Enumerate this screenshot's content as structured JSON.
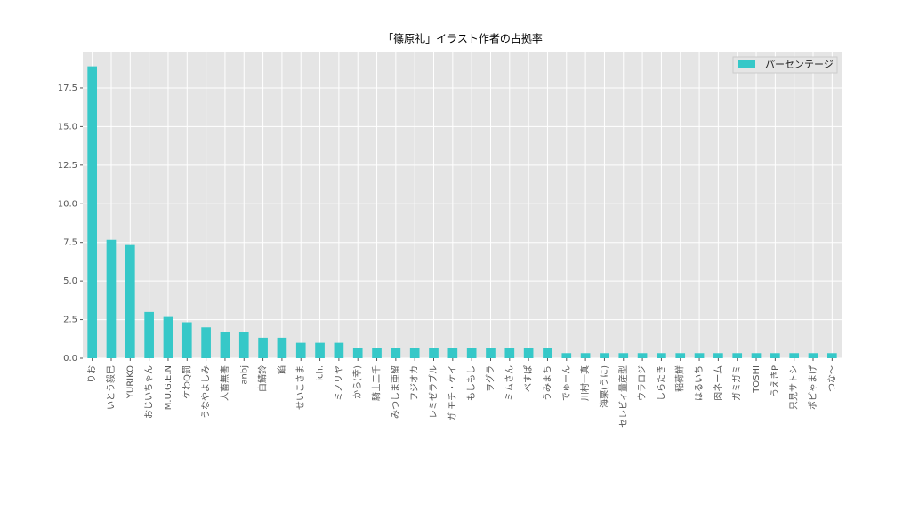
{
  "chart_data": {
    "type": "bar",
    "title": "「篠原礼」イラスト作者の占拠率",
    "categories": [
      "りお",
      "いとう毅巳",
      "YURIKO",
      "おじいちゃん",
      "M.U.G.E.N",
      "ケわQ罰",
      "うなやよしみ",
      "人畜無害",
      "anbj",
      "白鯖鈴",
      "餡",
      "せいこさま",
      "ich.",
      "ミノリヤ",
      "から(幸)",
      "騎士二千",
      "みつしま亜留",
      "フジオカ",
      "レミゼラブル",
      "ガ モチ・ケイ",
      "もしもし",
      "ヲグラ",
      "ミムさん",
      "べすぱ",
      "うみまち",
      "でゅーん",
      "川村一真",
      "海栗(うに)",
      "セレビィ量産型",
      "ウラロジ",
      "しらたき",
      "稲荷鮮",
      "はるいち",
      "肉ネーム",
      "ガミガミ",
      "TOSHI",
      "うえきP",
      "只見サトシ",
      "ポピゃまげ",
      "つな〜"
    ],
    "series": [
      {
        "name": "パーセンテージ",
        "color": "#36c8c8",
        "values": [
          18.9,
          7.67,
          7.33,
          3.0,
          2.67,
          2.33,
          2.0,
          1.67,
          1.67,
          1.33,
          1.33,
          1.0,
          1.0,
          1.0,
          0.67,
          0.67,
          0.67,
          0.67,
          0.67,
          0.67,
          0.67,
          0.67,
          0.67,
          0.67,
          0.67,
          0.33,
          0.33,
          0.33,
          0.33,
          0.33,
          0.33,
          0.33,
          0.33,
          0.33,
          0.33,
          0.33,
          0.33,
          0.33,
          0.33,
          0.33
        ]
      }
    ],
    "ylim": [
      0,
      19.8
    ],
    "yticks": [
      {
        "value": 0,
        "label": "0.0"
      },
      2.5,
      {
        "value": 5,
        "label": "5.0"
      },
      7.5,
      {
        "value": 10,
        "label": "10.0"
      },
      12.5,
      {
        "value": 15,
        "label": "15.0"
      },
      17.5
    ],
    "grid": true,
    "legend": "upper right"
  }
}
